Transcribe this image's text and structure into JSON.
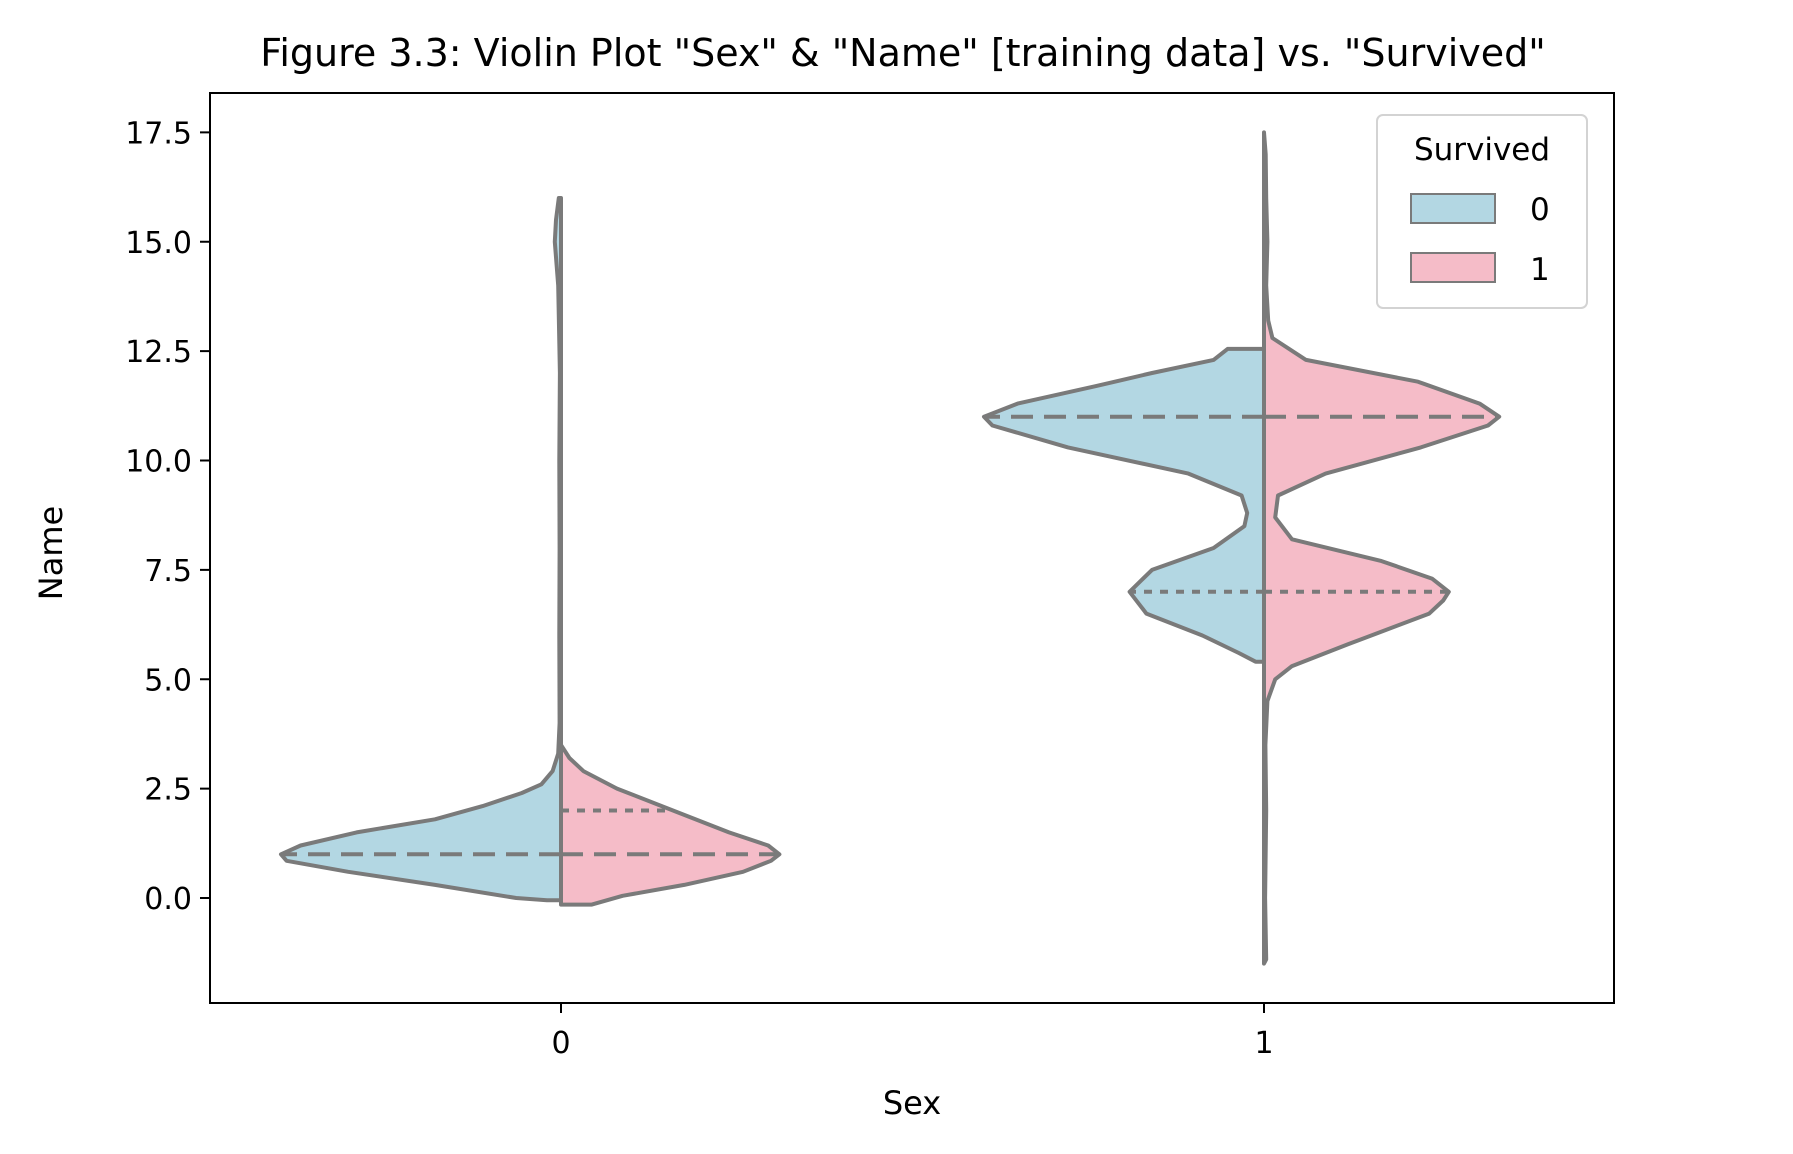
{
  "chart_data": {
    "type": "violin",
    "title": "Figure 3.3:  Violin Plot \"Sex\" & \"Name\" [training data] vs. \"Survived\"",
    "xlabel": "Sex",
    "ylabel": "Name",
    "categories": [
      "0",
      "1"
    ],
    "ylim": [
      -2.4,
      18.4
    ],
    "yticks": [
      0.0,
      2.5,
      5.0,
      7.5,
      10.0,
      12.5,
      15.0,
      17.5
    ],
    "ytick_labels": [
      "0.0",
      "2.5",
      "5.0",
      "7.5",
      "10.0",
      "12.5",
      "15.0",
      "17.5"
    ],
    "split": true,
    "inner": "quartile",
    "grid": false,
    "legend": {
      "title": "Survived",
      "placement": "top-right",
      "entries": [
        {
          "label": "0",
          "color": "#b3d7e3"
        },
        {
          "label": "1",
          "color": "#f5bcc8"
        }
      ]
    },
    "outline_color": "#7a7a7a",
    "violins": [
      {
        "category": "0",
        "hue": "0",
        "side": "left",
        "color": "#b3d7e3",
        "quartile_lines": [
          {
            "y": 1.0,
            "kind": "median"
          }
        ],
        "profile": [
          [
            -0.05,
            0.05
          ],
          [
            0.0,
            0.16
          ],
          [
            0.3,
            0.45
          ],
          [
            0.6,
            0.76
          ],
          [
            0.85,
            0.98
          ],
          [
            1.0,
            1.0
          ],
          [
            1.2,
            0.93
          ],
          [
            1.5,
            0.73
          ],
          [
            1.8,
            0.45
          ],
          [
            2.1,
            0.28
          ],
          [
            2.4,
            0.14
          ],
          [
            2.6,
            0.07
          ],
          [
            2.9,
            0.03
          ],
          [
            3.3,
            0.01
          ],
          [
            4.0,
            0.005
          ],
          [
            6.0,
            0.006
          ],
          [
            8.0,
            0.005
          ],
          [
            10.0,
            0.006
          ],
          [
            12.0,
            0.004
          ],
          [
            14.0,
            0.01
          ],
          [
            15.0,
            0.022
          ],
          [
            15.5,
            0.018
          ],
          [
            16.0,
            0.008
          ]
        ]
      },
      {
        "category": "0",
        "hue": "1",
        "side": "right",
        "color": "#f5bcc8",
        "quartile_lines": [
          {
            "y": 1.0,
            "kind": "median"
          },
          {
            "y": 2.0,
            "kind": "quartile"
          }
        ],
        "profile": [
          [
            -0.15,
            0.0
          ],
          [
            -0.15,
            0.11
          ],
          [
            0.05,
            0.22
          ],
          [
            0.3,
            0.44
          ],
          [
            0.6,
            0.65
          ],
          [
            0.85,
            0.75
          ],
          [
            1.0,
            0.78
          ],
          [
            1.2,
            0.74
          ],
          [
            1.5,
            0.6
          ],
          [
            1.8,
            0.48
          ],
          [
            2.1,
            0.36
          ],
          [
            2.5,
            0.2
          ],
          [
            2.9,
            0.08
          ],
          [
            3.2,
            0.03
          ],
          [
            3.5,
            0.0
          ]
        ]
      },
      {
        "category": "1",
        "hue": "0",
        "side": "left",
        "color": "#b3d7e3",
        "quartile_lines": [
          {
            "y": 11.0,
            "kind": "median"
          },
          {
            "y": 7.0,
            "kind": "quartile"
          }
        ],
        "profile": [
          [
            5.4,
            0.0
          ],
          [
            5.4,
            0.03
          ],
          [
            5.6,
            0.09
          ],
          [
            6.0,
            0.22
          ],
          [
            6.5,
            0.42
          ],
          [
            7.0,
            0.48
          ],
          [
            7.5,
            0.4
          ],
          [
            8.0,
            0.18
          ],
          [
            8.5,
            0.07
          ],
          [
            8.8,
            0.06
          ],
          [
            9.2,
            0.08
          ],
          [
            9.7,
            0.27
          ],
          [
            10.3,
            0.7
          ],
          [
            10.8,
            0.97
          ],
          [
            11.0,
            1.0
          ],
          [
            11.3,
            0.88
          ],
          [
            11.7,
            0.6
          ],
          [
            12.0,
            0.4
          ],
          [
            12.3,
            0.18
          ],
          [
            12.55,
            0.13
          ],
          [
            12.55,
            0.0
          ]
        ]
      },
      {
        "category": "1",
        "hue": "1",
        "side": "right",
        "color": "#f5bcc8",
        "quartile_lines": [
          {
            "y": 11.0,
            "kind": "median"
          },
          {
            "y": 7.0,
            "kind": "quartile"
          }
        ],
        "profile": [
          [
            -1.5,
            0.0
          ],
          [
            -1.4,
            0.008
          ],
          [
            0.0,
            0.004
          ],
          [
            2.0,
            0.008
          ],
          [
            3.5,
            0.005
          ],
          [
            4.5,
            0.012
          ],
          [
            5.0,
            0.04
          ],
          [
            5.3,
            0.1
          ],
          [
            5.8,
            0.3
          ],
          [
            6.5,
            0.59
          ],
          [
            6.8,
            0.64
          ],
          [
            7.0,
            0.66
          ],
          [
            7.3,
            0.6
          ],
          [
            7.7,
            0.42
          ],
          [
            8.2,
            0.1
          ],
          [
            8.7,
            0.04
          ],
          [
            9.2,
            0.05
          ],
          [
            9.7,
            0.22
          ],
          [
            10.3,
            0.56
          ],
          [
            10.8,
            0.8
          ],
          [
            11.0,
            0.84
          ],
          [
            11.3,
            0.77
          ],
          [
            11.8,
            0.55
          ],
          [
            12.3,
            0.15
          ],
          [
            12.8,
            0.03
          ],
          [
            13.2,
            0.015
          ],
          [
            14.0,
            0.008
          ],
          [
            15.0,
            0.012
          ],
          [
            16.0,
            0.008
          ],
          [
            17.0,
            0.006
          ],
          [
            17.5,
            0.0
          ]
        ]
      }
    ]
  }
}
